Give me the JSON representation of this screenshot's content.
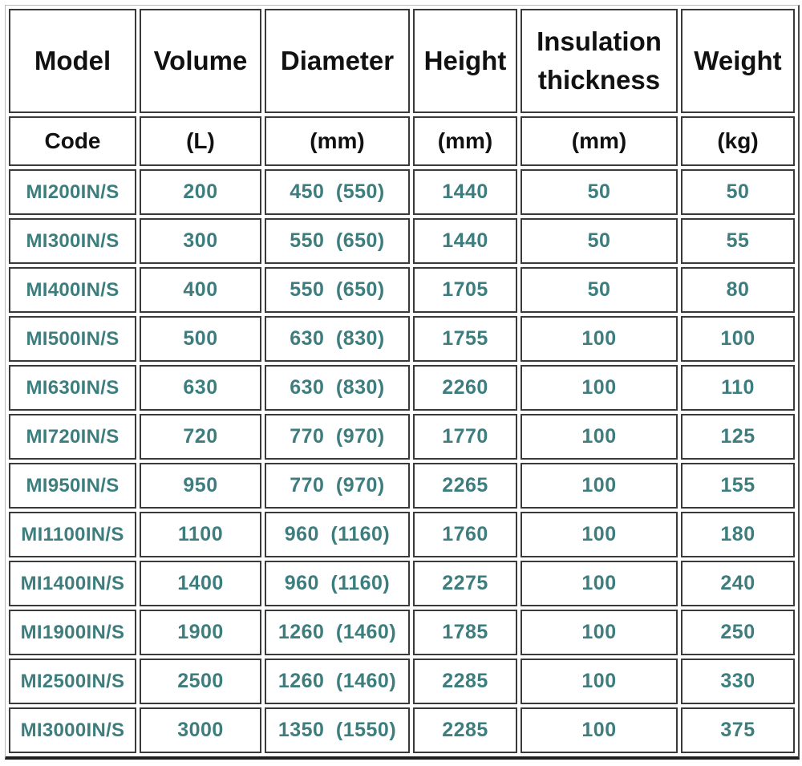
{
  "table": {
    "columns": [
      {
        "key": "model",
        "label": "Model",
        "unit": "Code"
      },
      {
        "key": "volume",
        "label": "Volume",
        "unit": "(L)"
      },
      {
        "key": "diameter",
        "label": "Diameter",
        "unit": "(mm)"
      },
      {
        "key": "height",
        "label": "Height",
        "unit": "(mm)"
      },
      {
        "key": "insulation",
        "label": "Insulation thickness",
        "unit": "(mm)"
      },
      {
        "key": "weight",
        "label": "Weight",
        "unit": "(kg)"
      }
    ],
    "rows": [
      [
        "MI200IN/S",
        "200",
        "450 (550)",
        "1440",
        "50",
        "50"
      ],
      [
        "MI300IN/S",
        "300",
        "550 (650)",
        "1440",
        "50",
        "55"
      ],
      [
        "MI400IN/S",
        "400",
        "550 (650)",
        "1705",
        "50",
        "80"
      ],
      [
        "MI500IN/S",
        "500",
        "630 (830)",
        "1755",
        "100",
        "100"
      ],
      [
        "MI630IN/S",
        "630",
        "630 (830)",
        "2260",
        "100",
        "110"
      ],
      [
        "MI720IN/S",
        "720",
        "770 (970)",
        "1770",
        "100",
        "125"
      ],
      [
        "MI950IN/S",
        "950",
        "770 (970)",
        "2265",
        "100",
        "155"
      ],
      [
        "MI1100IN/S",
        "1100",
        "960 (1160)",
        "1760",
        "100",
        "180"
      ],
      [
        "MI1400IN/S",
        "1400",
        "960 (1160)",
        "2275",
        "100",
        "240"
      ],
      [
        "MI1900IN/S",
        "1900",
        "1260 (1460)",
        "1785",
        "100",
        "250"
      ],
      [
        "MI2500IN/S",
        "2500",
        "1260 (1460)",
        "2285",
        "100",
        "330"
      ],
      [
        "MI3000IN/S",
        "3000",
        "1350 (1550)",
        "2285",
        "100",
        "375"
      ]
    ]
  },
  "colors": {
    "accent_text": "#3d7d7d",
    "header_text": "#111111",
    "border": "#3a3a3a"
  }
}
